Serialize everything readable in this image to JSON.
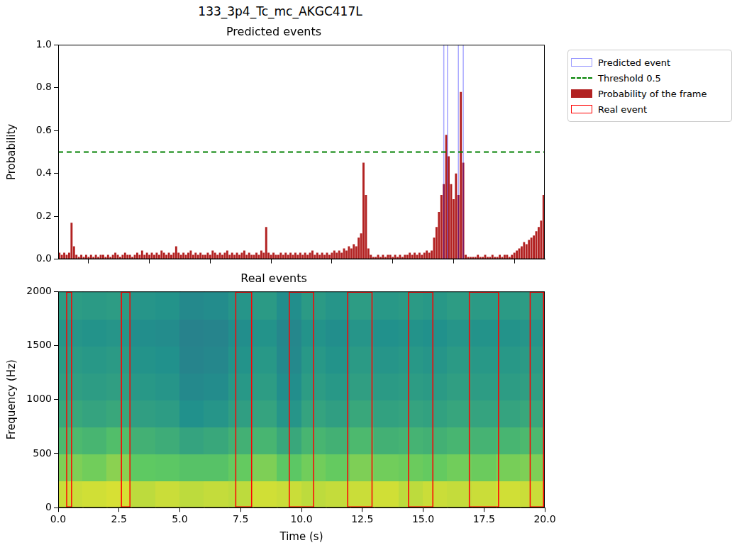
{
  "title": "133_3p4_Tc_mc_AKGC417L",
  "chart_data": [
    {
      "type": "bar",
      "title": "Predicted events",
      "ylabel": "Probability",
      "series": [
        {
          "name": "Probability of the frame",
          "color": "#b22222",
          "values": [
            0.03,
            0.02,
            0.03,
            0.02,
            0.03,
            0.17,
            0.06,
            0.02,
            0.01,
            0.02,
            0.01,
            0.02,
            0.01,
            0.02,
            0.01,
            0.02,
            0.01,
            0.02,
            0.02,
            0.01,
            0.02,
            0.01,
            0.02,
            0.03,
            0.02,
            0.01,
            0.02,
            0.03,
            0.02,
            0.02,
            0.01,
            0.02,
            0.03,
            0.02,
            0.04,
            0.02,
            0.03,
            0.02,
            0.03,
            0.02,
            0.03,
            0.02,
            0.04,
            0.03,
            0.02,
            0.03,
            0.02,
            0.03,
            0.06,
            0.03,
            0.02,
            0.03,
            0.02,
            0.03,
            0.04,
            0.02,
            0.03,
            0.02,
            0.03,
            0.02,
            0.02,
            0.03,
            0.02,
            0.04,
            0.03,
            0.02,
            0.03,
            0.02,
            0.03,
            0.04,
            0.02,
            0.03,
            0.02,
            0.03,
            0.02,
            0.03,
            0.04,
            0.02,
            0.03,
            0.02,
            0.02,
            0.03,
            0.02,
            0.04,
            0.03,
            0.15,
            0.03,
            0.02,
            0.03,
            0.02,
            0.02,
            0.03,
            0.02,
            0.03,
            0.02,
            0.03,
            0.02,
            0.03,
            0.02,
            0.03,
            0.02,
            0.03,
            0.02,
            0.03,
            0.04,
            0.02,
            0.03,
            0.02,
            0.03,
            0.02,
            0.03,
            0.02,
            0.03,
            0.04,
            0.03,
            0.04,
            0.03,
            0.05,
            0.04,
            0.06,
            0.05,
            0.07,
            0.06,
            0.1,
            0.12,
            0.45,
            0.3,
            0.05,
            0.02,
            0.01,
            0.01,
            0.02,
            0.01,
            0.02,
            0.01,
            0.02,
            0.02,
            0.01,
            0.02,
            0.01,
            0.02,
            0.01,
            0.02,
            0.02,
            0.03,
            0.02,
            0.03,
            0.02,
            0.03,
            0.02,
            0.03,
            0.04,
            0.03,
            0.04,
            0.1,
            0.15,
            0.22,
            0.3,
            0.35,
            0.58,
            0.48,
            0.35,
            0.28,
            0.4,
            0.3,
            0.78,
            0.45,
            0.02,
            0.01,
            0.01,
            0.01,
            0.01,
            0.02,
            0.01,
            0.01,
            0.02,
            0.01,
            0.01,
            0.02,
            0.01,
            0.01,
            0.02,
            0.01,
            0.02,
            0.02,
            0.01,
            0.02,
            0.03,
            0.04,
            0.05,
            0.06,
            0.08,
            0.07,
            0.09,
            0.1,
            0.11,
            0.13,
            0.15,
            0.18,
            0.3
          ]
        }
      ],
      "x": [
        0.05,
        0.15,
        0.25,
        0.35,
        0.45,
        0.55,
        0.65,
        0.75,
        0.85,
        0.95,
        1.05,
        1.15,
        1.25,
        1.35,
        1.45,
        1.55,
        1.65,
        1.75,
        1.85,
        1.95,
        2.05,
        2.15,
        2.25,
        2.35,
        2.45,
        2.55,
        2.65,
        2.75,
        2.85,
        2.95,
        3.05,
        3.15,
        3.25,
        3.35,
        3.45,
        3.55,
        3.65,
        3.75,
        3.85,
        3.95,
        4.05,
        4.15,
        4.25,
        4.35,
        4.45,
        4.55,
        4.65,
        4.75,
        4.85,
        4.95,
        5.05,
        5.15,
        5.25,
        5.35,
        5.45,
        5.55,
        5.65,
        5.75,
        5.85,
        5.95,
        6.05,
        6.15,
        6.25,
        6.35,
        6.45,
        6.55,
        6.65,
        6.75,
        6.85,
        6.95,
        7.05,
        7.15,
        7.25,
        7.35,
        7.45,
        7.55,
        7.65,
        7.75,
        7.85,
        7.95,
        8.05,
        8.15,
        8.25,
        8.35,
        8.45,
        8.55,
        8.65,
        8.75,
        8.85,
        8.95,
        9.05,
        9.15,
        9.25,
        9.35,
        9.45,
        9.55,
        9.65,
        9.75,
        9.85,
        9.95,
        10.05,
        10.15,
        10.25,
        10.35,
        10.45,
        10.55,
        10.65,
        10.75,
        10.85,
        10.95,
        11.05,
        11.15,
        11.25,
        11.35,
        11.45,
        11.55,
        11.65,
        11.75,
        11.85,
        11.95,
        12.05,
        12.15,
        12.25,
        12.35,
        12.45,
        12.55,
        12.65,
        12.75,
        12.85,
        12.95,
        13.05,
        13.15,
        13.25,
        13.35,
        13.45,
        13.55,
        13.65,
        13.75,
        13.85,
        13.95,
        14.05,
        14.15,
        14.25,
        14.35,
        14.45,
        14.55,
        14.65,
        14.75,
        14.85,
        14.95,
        15.05,
        15.15,
        15.25,
        15.35,
        15.45,
        15.55,
        15.65,
        15.75,
        15.85,
        15.95,
        16.05,
        16.15,
        16.25,
        16.35,
        16.45,
        16.55,
        16.65,
        16.75,
        16.85,
        16.95,
        17.05,
        17.15,
        17.25,
        17.35,
        17.45,
        17.55,
        17.65,
        17.75,
        17.85,
        17.95,
        18.05,
        18.15,
        18.25,
        18.35,
        18.45,
        18.55,
        18.65,
        18.75,
        18.85,
        18.95,
        19.05,
        19.15,
        19.25,
        19.35,
        19.45,
        19.55,
        19.65,
        19.75,
        19.85,
        19.95
      ],
      "xlim": [
        0,
        20
      ],
      "xticks": [
        0,
        2.5,
        5,
        7.5,
        10,
        12.5,
        15,
        17.5,
        20
      ],
      "ylim": [
        0,
        1
      ],
      "yticks": [
        {
          "value": 0,
          "label": "0.0"
        },
        {
          "value": 0.2,
          "label": "0.2"
        },
        {
          "value": 0.4,
          "label": "0.4"
        },
        {
          "value": 0.6,
          "label": "0.6"
        },
        {
          "value": 0.8,
          "label": "0.8"
        },
        {
          "value": 1,
          "label": "1.0"
        }
      ],
      "tick_labels": "y",
      "grid": false,
      "legend": "right",
      "threshold": {
        "value": 0.5,
        "label": "Threshold 0.5",
        "color": "green",
        "line_style": "dashed"
      },
      "predicted_events": {
        "label": "Predicted event",
        "color": "blue",
        "intervals": [
          [
            15.85,
            16.0
          ],
          [
            16.45,
            16.65
          ]
        ]
      }
    },
    {
      "type": "spectrogram",
      "title": "Real events",
      "xlabel": "Time (s)",
      "ylabel": "Frequency (Hz)",
      "xlim": [
        0,
        20
      ],
      "xticks": [
        {
          "value": 0,
          "label": "0.0"
        },
        {
          "value": 2.5,
          "label": "2.5"
        },
        {
          "value": 5,
          "label": "5.0"
        },
        {
          "value": 7.5,
          "label": "7.5"
        },
        {
          "value": 10,
          "label": "10.0"
        },
        {
          "value": 12.5,
          "label": "12.5"
        },
        {
          "value": 15,
          "label": "15.0"
        },
        {
          "value": 17.5,
          "label": "17.5"
        },
        {
          "value": 20,
          "label": "20.0"
        }
      ],
      "ylim": [
        0,
        2000
      ],
      "yticks": [
        0,
        500,
        1000,
        1500,
        2000
      ],
      "grid": false,
      "spectrogram": {
        "time_edges": [
          0,
          1,
          2,
          3,
          4,
          5,
          6,
          7,
          8,
          9,
          10,
          11,
          12,
          13,
          14,
          15,
          16,
          17,
          18,
          19,
          20
        ],
        "freq_edges": [
          0,
          250,
          500,
          750,
          1000,
          1250,
          1500,
          1750,
          2000
        ],
        "cells": [
          [
            0.92,
            0.93,
            0.94,
            0.9,
            0.92,
            0.9,
            0.91,
            0.9,
            0.93,
            0.92,
            0.9,
            0.91,
            0.92,
            0.93,
            0.9,
            0.92,
            0.91,
            0.92,
            0.93,
            0.92
          ],
          [
            0.8,
            0.78,
            0.82,
            0.75,
            0.74,
            0.72,
            0.72,
            0.76,
            0.8,
            0.74,
            0.78,
            0.76,
            0.8,
            0.78,
            0.77,
            0.76,
            0.78,
            0.77,
            0.79,
            0.8
          ],
          [
            0.68,
            0.66,
            0.7,
            0.64,
            0.62,
            0.58,
            0.6,
            0.64,
            0.66,
            0.6,
            0.66,
            0.64,
            0.68,
            0.64,
            0.65,
            0.64,
            0.66,
            0.65,
            0.66,
            0.68
          ],
          [
            0.6,
            0.58,
            0.6,
            0.56,
            0.55,
            0.5,
            0.52,
            0.56,
            0.58,
            0.52,
            0.58,
            0.56,
            0.6,
            0.57,
            0.58,
            0.57,
            0.59,
            0.58,
            0.58,
            0.6
          ],
          [
            0.56,
            0.55,
            0.56,
            0.53,
            0.52,
            0.47,
            0.48,
            0.53,
            0.55,
            0.49,
            0.55,
            0.53,
            0.56,
            0.54,
            0.55,
            0.54,
            0.56,
            0.55,
            0.55,
            0.56
          ],
          [
            0.54,
            0.53,
            0.54,
            0.51,
            0.5,
            0.45,
            0.46,
            0.51,
            0.53,
            0.47,
            0.53,
            0.51,
            0.54,
            0.52,
            0.53,
            0.52,
            0.54,
            0.53,
            0.53,
            0.54
          ],
          [
            0.52,
            0.51,
            0.52,
            0.49,
            0.48,
            0.44,
            0.45,
            0.49,
            0.51,
            0.46,
            0.51,
            0.49,
            0.52,
            0.5,
            0.51,
            0.5,
            0.52,
            0.51,
            0.51,
            0.52
          ],
          [
            0.55,
            0.54,
            0.55,
            0.52,
            0.51,
            0.47,
            0.48,
            0.52,
            0.54,
            0.49,
            0.54,
            0.52,
            0.55,
            0.53,
            0.54,
            0.53,
            0.55,
            0.54,
            0.54,
            0.55
          ]
        ]
      },
      "real_events": {
        "label": "Real event",
        "color": "red",
        "intervals": [
          [
            0.35,
            0.55
          ],
          [
            2.6,
            2.95
          ],
          [
            7.3,
            7.95
          ],
          [
            9.5,
            10.5
          ],
          [
            11.9,
            12.9
          ],
          [
            14.4,
            15.4
          ],
          [
            16.9,
            18.1
          ],
          [
            19.4,
            19.95
          ]
        ]
      }
    }
  ]
}
